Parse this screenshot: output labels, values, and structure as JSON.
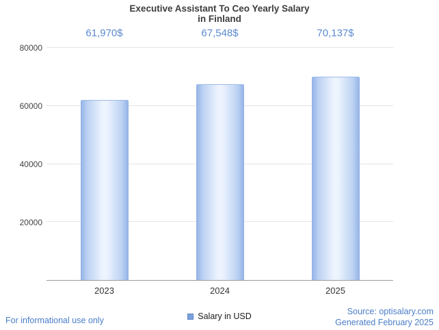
{
  "title": {
    "line1": "Executive Assistant To Ceo Yearly Salary",
    "line2": "in Finland"
  },
  "chart_data": {
    "type": "bar",
    "title": "Executive Assistant To Ceo Yearly Salary in Finland",
    "categories": [
      "2023",
      "2024",
      "2025"
    ],
    "series": [
      {
        "name": "Salary in USD",
        "values": [
          61970,
          67548,
          70137
        ],
        "value_labels": [
          "61,970$",
          "67,548$",
          "70,137$"
        ]
      }
    ],
    "xlabel": "",
    "ylabel": "",
    "ylim": [
      0,
      80000
    ],
    "yticks": [
      20000,
      40000,
      60000,
      80000
    ],
    "grid": true,
    "legend_position": "bottom",
    "bar_color_edge": "#93b1e6",
    "bar_color_center": "#eef4fe",
    "value_label_color": "#5b8ad0"
  },
  "legend": {
    "label": "Salary in USD",
    "swatch_color": "#7ba1dd"
  },
  "footer": {
    "left": "For informational use only",
    "source": "Source: optisalary.com",
    "generated": "Generated February 2025"
  },
  "colors": {
    "title_text": "#3c3c3c",
    "axis_text": "#444444",
    "link_blue": "#4a7dc9"
  }
}
